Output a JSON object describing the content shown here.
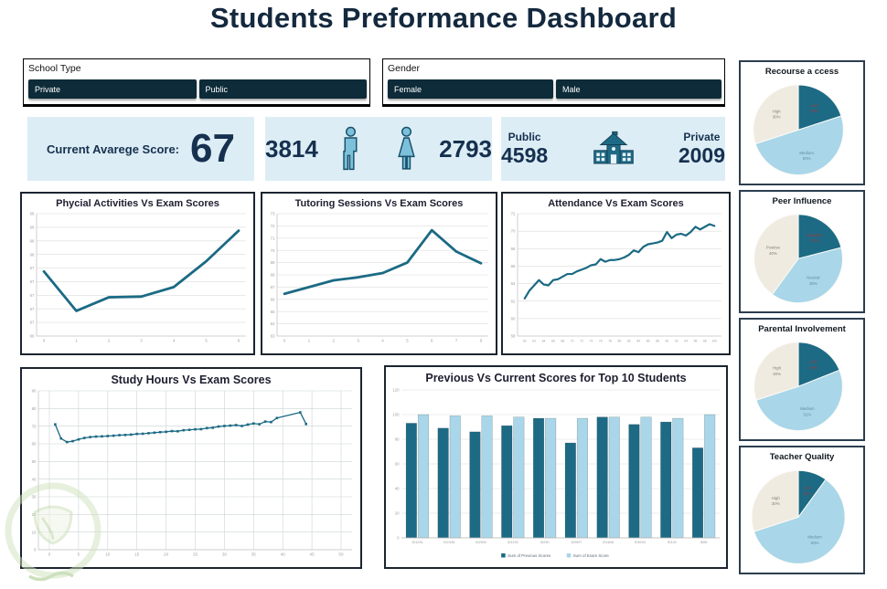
{
  "title": "Students Preformance Dashboard",
  "slicers": {
    "school_type": {
      "label": "School Type",
      "options": [
        "Private",
        "Public"
      ]
    },
    "gender": {
      "label": "Gender",
      "options": [
        "Female",
        "Male"
      ]
    }
  },
  "kpis": {
    "average": {
      "label": "Current Avarege Score:",
      "value": "67"
    },
    "gender": {
      "male_count": "3814",
      "female_count": "2793"
    },
    "schools": {
      "public_label": "Public",
      "public_count": "4598",
      "private_label": "Private",
      "private_count": "2009"
    }
  },
  "colors": {
    "navy": "#14293e",
    "teal_dark": "#1d6a85",
    "teal_line": "#1b6a84",
    "blue_light": "#a9d6e8",
    "cream": "#f0ebe1",
    "kpi_bg": "#dcedf5",
    "button_bg": "#0d2b39",
    "label_red": "#9c3e3e"
  },
  "chart_data": [
    {
      "type": "line",
      "title": "Phycial Activities Vs Exam Scores",
      "x_ticks": [
        0,
        1,
        2,
        3,
        4,
        5,
        6
      ],
      "y_ticks": [
        68.6,
        68.4,
        68.2,
        68.0,
        67.8,
        67.6,
        67.4,
        67.2,
        67.0,
        66.8
      ],
      "y_tick_labels": [
        "68",
        "68",
        "68",
        "68",
        "67",
        "67",
        "67",
        "67",
        "67",
        "66"
      ],
      "x": [
        0,
        1,
        2,
        3,
        4,
        5,
        6
      ],
      "y": [
        67.75,
        67.17,
        67.37,
        67.38,
        67.52,
        67.9,
        68.35
      ],
      "color": "#1b6a84",
      "stroke": 2.8,
      "grid": "h"
    },
    {
      "type": "line",
      "title": "Tutoring Sessions Vs Exam Scores",
      "x_ticks": [
        0,
        1,
        2,
        3,
        4,
        5,
        6,
        7,
        8
      ],
      "y_ticks": [
        73,
        72,
        71,
        70,
        69,
        68,
        67,
        66,
        65,
        64,
        63
      ],
      "y_tick_labels": [
        "73",
        "72",
        "71",
        "70",
        "69",
        "68",
        "67",
        "66",
        "65",
        "64",
        "63"
      ],
      "x": [
        0,
        1,
        2,
        3,
        4,
        5,
        6,
        7,
        8
      ],
      "y": [
        66.45,
        67.0,
        67.55,
        67.8,
        68.15,
        69.0,
        71.65,
        69.9,
        68.95
      ],
      "color": "#1b6a84",
      "stroke": 2.8,
      "grid": "h"
    },
    {
      "type": "line",
      "title": "Attendance Vs Exam Scores",
      "x_ticks": [
        60,
        62,
        64,
        66,
        68,
        70,
        72,
        74,
        76,
        78,
        80,
        82,
        84,
        86,
        88,
        90,
        92,
        94,
        96,
        98,
        100
      ],
      "y_ticks": [
        72,
        70,
        68,
        66,
        64,
        62,
        60,
        58
      ],
      "y_tick_labels": [
        "72",
        "70",
        "68",
        "66",
        "64",
        "62",
        "60",
        "58"
      ],
      "x": [
        60,
        61,
        62,
        63,
        64,
        65,
        66,
        67,
        68,
        69,
        70,
        71,
        72,
        73,
        74,
        75,
        76,
        77,
        78,
        79,
        80,
        81,
        82,
        83,
        84,
        85,
        86,
        87,
        88,
        89,
        90,
        91,
        92,
        93,
        94,
        95,
        96,
        97,
        98,
        99,
        100
      ],
      "y": [
        62.3,
        63.2,
        63.8,
        64.4,
        63.9,
        63.8,
        64.4,
        64.5,
        64.8,
        65.1,
        65.1,
        65.4,
        65.6,
        65.8,
        66.1,
        66.2,
        66.8,
        66.5,
        66.7,
        66.7,
        66.8,
        67.0,
        67.3,
        67.8,
        67.6,
        68.2,
        68.5,
        68.6,
        68.7,
        68.9,
        69.9,
        69.2,
        69.6,
        69.7,
        69.5,
        69.9,
        70.5,
        70.2,
        70.5,
        70.8,
        70.6
      ],
      "color": "#1b6a84",
      "stroke": 2.2,
      "grid": "h"
    },
    {
      "type": "line",
      "title": "Study Hours Vs Exam Scores",
      "x_ticks": [
        0,
        5,
        10,
        15,
        20,
        25,
        30,
        35,
        40,
        45,
        50
      ],
      "y_ticks": [
        90,
        80,
        70,
        60,
        50,
        40,
        30,
        20,
        10,
        0
      ],
      "y_tick_labels": [
        "90",
        "80",
        "70",
        "60",
        "50",
        "40",
        "30",
        "20",
        "10",
        "0"
      ],
      "x": [
        1,
        2,
        3,
        4,
        5,
        6,
        7,
        8,
        9,
        10,
        11,
        12,
        13,
        14,
        15,
        16,
        17,
        18,
        19,
        20,
        21,
        22,
        23,
        24,
        25,
        26,
        27,
        28,
        29,
        30,
        31,
        32,
        33,
        34,
        35,
        36,
        37,
        38,
        39,
        43,
        44
      ],
      "y": [
        71,
        63,
        61,
        61.5,
        62.5,
        63.3,
        63.8,
        64.1,
        64.2,
        64.4,
        64.6,
        64.9,
        65,
        65.2,
        65.6,
        65.7,
        66,
        66.3,
        66.6,
        66.8,
        67.2,
        67.1,
        67.7,
        67.9,
        68.2,
        68.3,
        68.9,
        69.1,
        69.8,
        70.1,
        70.3,
        70.6,
        70.1,
        70.9,
        71.5,
        71.1,
        72.6,
        72.3,
        74.6,
        77.8,
        71.2
      ],
      "color": "#1b6a84",
      "stroke": 1.3,
      "grid": "both",
      "markers": true
    },
    {
      "type": "bar",
      "title": "Previous Vs Current Scores for Top 10 Students",
      "categories": [
        "ID1226",
        "ID2436",
        "ID2500",
        "ID1193",
        "ID230",
        "ID2697",
        "ID1846",
        "ID5204",
        "ID120",
        "ID65"
      ],
      "y_ticks": [
        120,
        100,
        80,
        60,
        40,
        20,
        0
      ],
      "y_tick_labels": [
        "120",
        "100",
        "80",
        "60",
        "40",
        "20",
        "0"
      ],
      "ylim": [
        0,
        120
      ],
      "legend_position": "bottom",
      "series": [
        {
          "name": "Sum of Previous Scores",
          "color": "#1d6a85",
          "values": [
            93,
            89,
            86,
            91,
            97,
            77,
            98,
            92,
            94,
            73
          ]
        },
        {
          "name": "Sum of Exam Score",
          "color": "#a9d6e8",
          "values": [
            100,
            99,
            99,
            98,
            97,
            97,
            98,
            98,
            97,
            100
          ]
        }
      ]
    },
    {
      "type": "pie",
      "title": "Recourse a ccess",
      "slices": [
        {
          "label": "Low",
          "pct": 20,
          "color": "#1d6a85",
          "label_color": "#9c3e3e"
        },
        {
          "label": "Medium",
          "pct": 50,
          "color": "#a9d6e8",
          "label_color": "#5d8fa0"
        },
        {
          "label": "High",
          "pct": 30,
          "color": "#f0ebe1",
          "label_color": "#85806f"
        }
      ]
    },
    {
      "type": "pie",
      "title": "Peer Influence",
      "slices": [
        {
          "label": "Negative",
          "pct": 21,
          "color": "#1d6a85",
          "label_color": "#9c3e3e"
        },
        {
          "label": "Neutral",
          "pct": 39,
          "color": "#a9d6e8",
          "label_color": "#5d8fa0"
        },
        {
          "label": "Positive",
          "pct": 40,
          "color": "#f0ebe1",
          "label_color": "#85806f"
        }
      ]
    },
    {
      "type": "pie",
      "title": "Parental Involvement",
      "slices": [
        {
          "label": "Low",
          "pct": 19,
          "color": "#1d6a85",
          "label_color": "#9c3e3e"
        },
        {
          "label": "Medium",
          "pct": 51,
          "color": "#a9d6e8",
          "label_color": "#5d8fa0"
        },
        {
          "label": "High",
          "pct": 30,
          "color": "#f0ebe1",
          "label_color": "#85806f"
        }
      ]
    },
    {
      "type": "pie",
      "title": "Teacher Quality",
      "slices": [
        {
          "label": "Low",
          "pct": 10,
          "color": "#1d6a85",
          "label_color": "#9c3e3e"
        },
        {
          "label": "Medium",
          "pct": 60,
          "color": "#a9d6e8",
          "label_color": "#5d8fa0"
        },
        {
          "label": "High",
          "pct": 30,
          "color": "#f0ebe1",
          "label_color": "#85806f"
        }
      ]
    }
  ]
}
